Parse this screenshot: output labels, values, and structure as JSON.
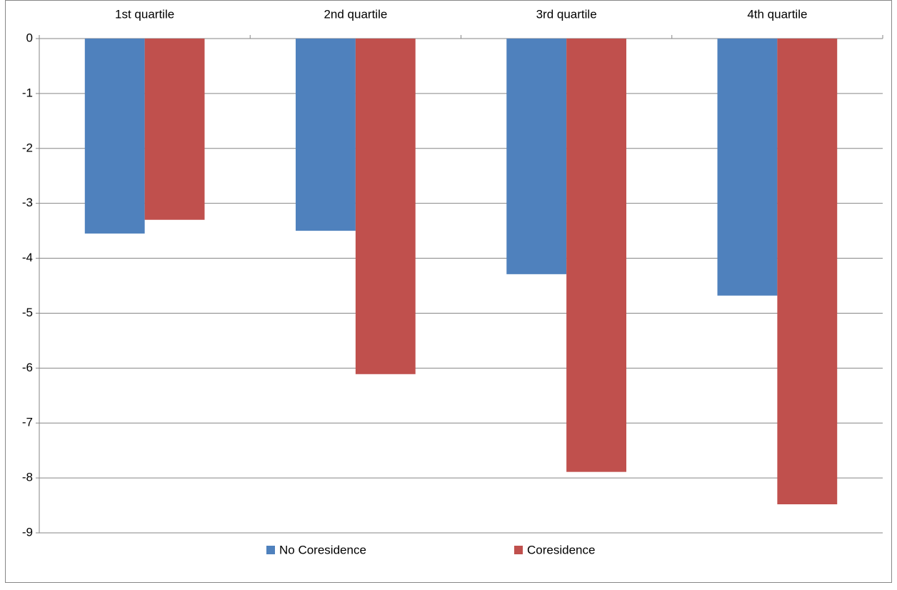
{
  "chart_data": {
    "type": "bar",
    "categories": [
      "1st quartile",
      "2nd quartile",
      "3rd quartile",
      "4th quartile"
    ],
    "series": [
      {
        "name": "No Coresidence",
        "color": "#4f81bd",
        "values": [
          -3.55,
          -3.5,
          -4.29,
          -4.68
        ]
      },
      {
        "name": "Coresidence",
        "color": "#c0504d",
        "values": [
          -3.3,
          -6.11,
          -7.89,
          -8.48
        ]
      }
    ],
    "ylim": [
      -9,
      0
    ],
    "yticks": [
      0,
      -1,
      -2,
      -3,
      -4,
      -5,
      -6,
      -7,
      -8,
      -9
    ],
    "grid": true,
    "legend": "bottom"
  }
}
